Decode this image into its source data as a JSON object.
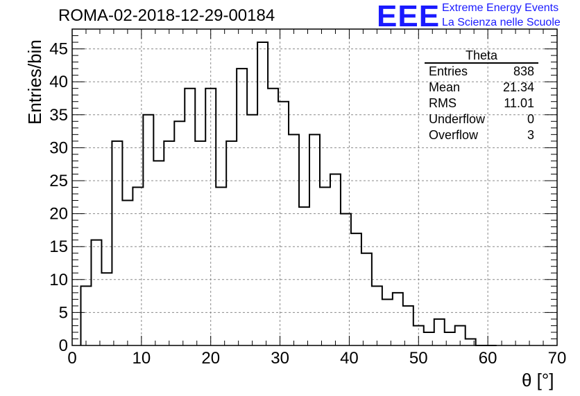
{
  "title": "ROMA-02-2018-12-29-00184",
  "logo": {
    "mark": "EEE",
    "line1": "Extreme Energy Events",
    "line2": "La Scienza nelle Scuole",
    "color": "#1a1aff"
  },
  "stats": {
    "title": "Theta",
    "rows": [
      {
        "label": "Entries",
        "value": "838"
      },
      {
        "label": "Mean",
        "value": "21.34"
      },
      {
        "label": "RMS",
        "value": "11.01"
      },
      {
        "label": "Underflow",
        "value": "0"
      },
      {
        "label": "Overflow",
        "value": "3"
      }
    ]
  },
  "chart_data": {
    "type": "bar",
    "histogram": true,
    "title": "ROMA-02-2018-12-29-00184",
    "xlabel": "θ [°]",
    "ylabel": "Entries/bin",
    "xlim": [
      0,
      70
    ],
    "ylim": [
      0,
      48
    ],
    "grid": true,
    "bin_width": 1.5,
    "bin_edges_start": 1.25,
    "values": [
      9,
      16,
      11,
      31,
      22,
      24,
      35,
      28,
      31,
      34,
      39,
      31,
      39,
      24,
      31,
      42,
      35,
      46,
      39,
      37,
      32,
      21,
      32,
      24,
      26,
      20,
      17,
      14,
      9,
      7,
      8,
      6,
      3,
      2,
      4,
      2,
      3,
      1,
      0,
      0
    ],
    "xticks": [
      0,
      10,
      20,
      30,
      40,
      50,
      60,
      70
    ],
    "yticks": [
      0,
      5,
      10,
      15,
      20,
      25,
      30,
      35,
      40,
      45
    ]
  }
}
